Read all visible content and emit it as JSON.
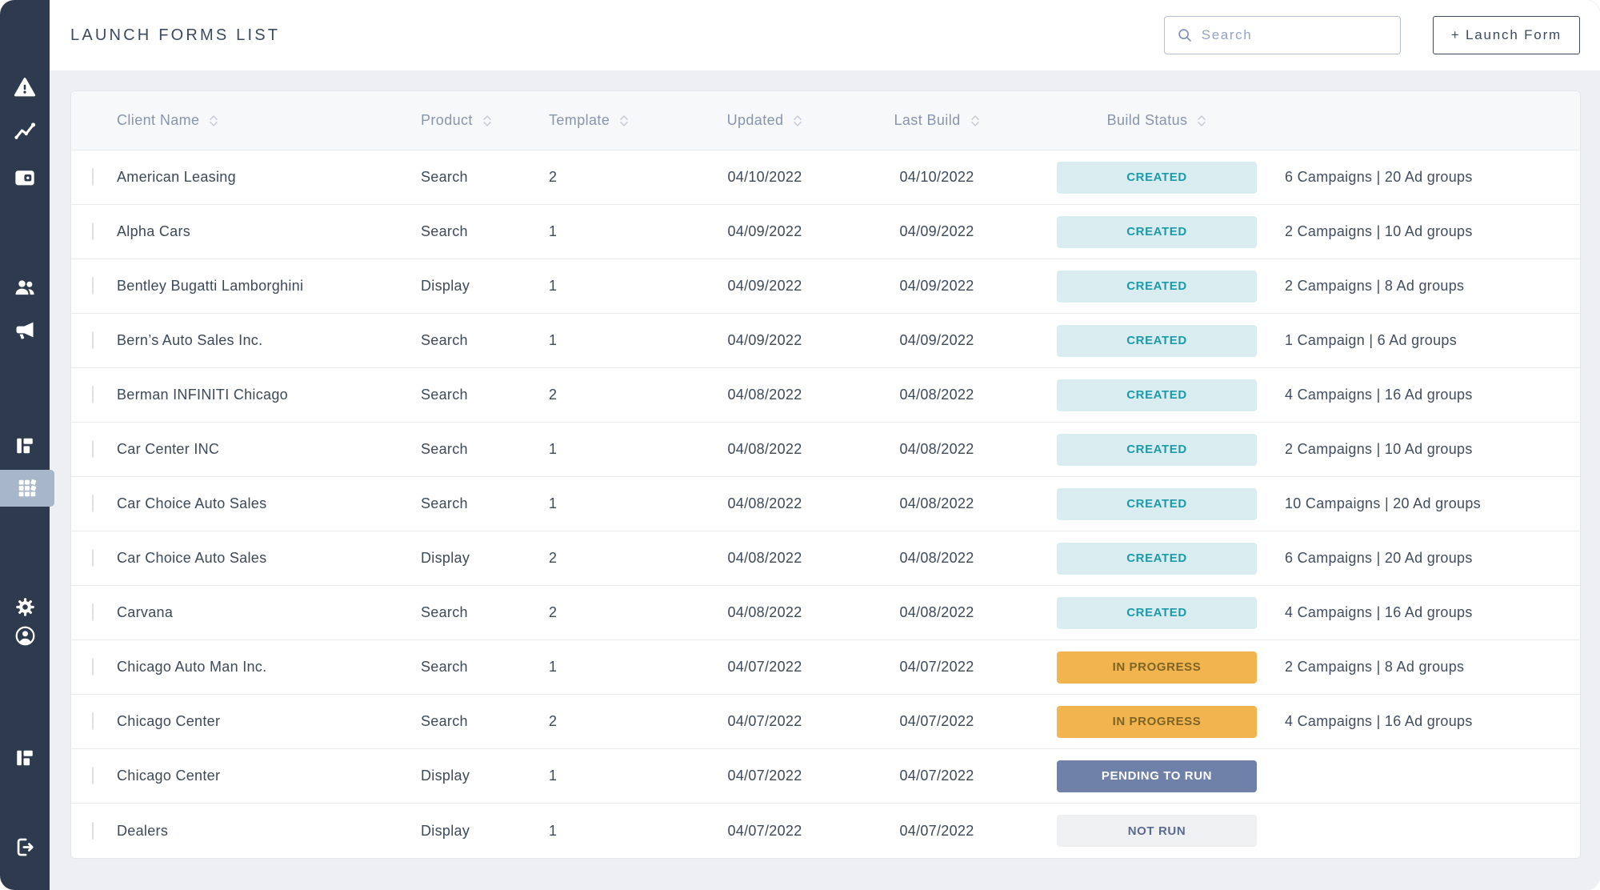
{
  "header": {
    "title": "LAUNCH FORMS LIST",
    "search_placeholder": "Search",
    "launch_button_label": "+ Launch Form"
  },
  "sidebar": {
    "items": [
      {
        "icon": "alert-triangle-icon",
        "active": false
      },
      {
        "icon": "trend-chart-icon",
        "active": false
      },
      {
        "icon": "wallet-icon",
        "active": false
      },
      {
        "icon": "users-icon",
        "active": false
      },
      {
        "icon": "megaphone-icon",
        "active": false
      },
      {
        "icon": "dashboard-icon",
        "active": false
      },
      {
        "icon": "apps-grid-icon",
        "active": true
      },
      {
        "icon": "gear-icon",
        "active": false
      },
      {
        "icon": "user-circle-icon",
        "active": false
      },
      {
        "icon": "dashboard-icon",
        "active": false
      },
      {
        "icon": "logout-icon",
        "active": false
      }
    ]
  },
  "table": {
    "columns": [
      {
        "label": "Client Name",
        "sortable": true
      },
      {
        "label": "Product",
        "sortable": true
      },
      {
        "label": "Template",
        "sortable": true
      },
      {
        "label": "Updated",
        "sortable": true
      },
      {
        "label": "Last Build",
        "sortable": true
      },
      {
        "label": "Build Status",
        "sortable": true
      }
    ],
    "rows": [
      {
        "client": "American Leasing",
        "product": "Search",
        "template": "2",
        "updated": "04/10/2022",
        "last_build": "04/10/2022",
        "status": "CREATED",
        "campaigns": "6 Campaigns | 20 Ad groups"
      },
      {
        "client": "Alpha Cars",
        "product": "Search",
        "template": "1",
        "updated": "04/09/2022",
        "last_build": "04/09/2022",
        "status": "CREATED",
        "campaigns": "2 Campaigns | 10 Ad groups"
      },
      {
        "client": "Bentley Bugatti Lamborghini",
        "product": "Display",
        "template": "1",
        "updated": "04/09/2022",
        "last_build": "04/09/2022",
        "status": "CREATED",
        "campaigns": "2 Campaigns | 8 Ad groups"
      },
      {
        "client": "Bern’s Auto Sales Inc.",
        "product": "Search",
        "template": "1",
        "updated": "04/09/2022",
        "last_build": "04/09/2022",
        "status": "CREATED",
        "campaigns": "1 Campaign | 6 Ad groups"
      },
      {
        "client": "Berman INFINITI Chicago",
        "product": "Search",
        "template": "2",
        "updated": "04/08/2022",
        "last_build": "04/08/2022",
        "status": "CREATED",
        "campaigns": "4 Campaigns | 16 Ad groups"
      },
      {
        "client": "Car Center INC",
        "product": "Search",
        "template": "1",
        "updated": "04/08/2022",
        "last_build": "04/08/2022",
        "status": "CREATED",
        "campaigns": "2 Campaigns | 10 Ad groups"
      },
      {
        "client": "Car Choice Auto Sales",
        "product": "Search",
        "template": "1",
        "updated": "04/08/2022",
        "last_build": "04/08/2022",
        "status": "CREATED",
        "campaigns": "10 Campaigns | 20 Ad groups"
      },
      {
        "client": "Car Choice Auto Sales",
        "product": "Display",
        "template": "2",
        "updated": "04/08/2022",
        "last_build": "04/08/2022",
        "status": "CREATED",
        "campaigns": "6 Campaigns | 20 Ad groups"
      },
      {
        "client": "Carvana",
        "product": "Search",
        "template": "2",
        "updated": "04/08/2022",
        "last_build": "04/08/2022",
        "status": "CREATED",
        "campaigns": "4 Campaigns | 16 Ad groups"
      },
      {
        "client": "Chicago Auto Man Inc.",
        "product": "Search",
        "template": "1",
        "updated": "04/07/2022",
        "last_build": "04/07/2022",
        "status": "IN PROGRESS",
        "campaigns": "2 Campaigns | 8 Ad groups"
      },
      {
        "client": "Chicago Center",
        "product": "Search",
        "template": "2",
        "updated": "04/07/2022",
        "last_build": "04/07/2022",
        "status": "IN PROGRESS",
        "campaigns": "4 Campaigns | 16 Ad groups"
      },
      {
        "client": "Chicago Center",
        "product": "Display",
        "template": "1",
        "updated": "04/07/2022",
        "last_build": "04/07/2022",
        "status": "PENDING TO RUN",
        "campaigns": ""
      },
      {
        "client": "Dealers",
        "product": "Display",
        "template": "1",
        "updated": "04/07/2022",
        "last_build": "04/07/2022",
        "status": "NOT RUN",
        "campaigns": ""
      }
    ]
  },
  "colors": {
    "sidebar_bg": "#2e3a4d",
    "sidebar_active_bg": "#a7b7c9",
    "page_bg": "#edeff3",
    "row_text": "#3d4959",
    "header_text": "#8795ad",
    "status": {
      "created": {
        "bg": "#d9edf0",
        "text": "#1d9aa8"
      },
      "in_progress": {
        "bg": "#f1b44e",
        "text": "#7d6426"
      },
      "pending_to_run": {
        "bg": "#6f80a9",
        "text": "#ffffff"
      },
      "not_run": {
        "bg": "#eff0f2",
        "text": "#5a6a8e"
      }
    }
  }
}
